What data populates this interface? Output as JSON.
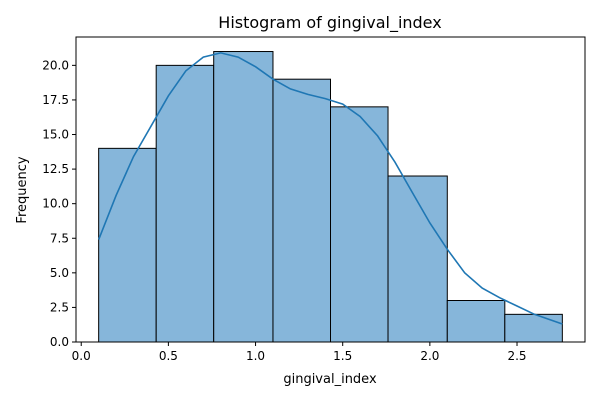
{
  "chart_data": {
    "type": "bar",
    "title": "Histogram of gingival_index",
    "xlabel": "gingival_index",
    "ylabel": "Frequency",
    "xlim": [
      -0.03,
      2.89
    ],
    "ylim": [
      0,
      22.05
    ],
    "x_ticks": [
      "0.0",
      "0.5",
      "1.0",
      "1.5",
      "2.0",
      "2.5"
    ],
    "x_tick_values": [
      0.0,
      0.5,
      1.0,
      1.5,
      2.0,
      2.5
    ],
    "y_ticks": [
      "0.0",
      "2.5",
      "5.0",
      "7.5",
      "10.0",
      "12.5",
      "15.0",
      "17.5",
      "20.0"
    ],
    "y_tick_values": [
      0.0,
      2.5,
      5.0,
      7.5,
      10.0,
      12.5,
      15.0,
      17.5,
      20.0
    ],
    "bins": [
      {
        "x0": 0.1,
        "x1": 0.43,
        "count": 14
      },
      {
        "x0": 0.43,
        "x1": 0.76,
        "count": 20
      },
      {
        "x0": 0.76,
        "x1": 1.1,
        "count": 21
      },
      {
        "x0": 1.1,
        "x1": 1.43,
        "count": 19
      },
      {
        "x0": 1.43,
        "x1": 1.76,
        "count": 17
      },
      {
        "x0": 1.76,
        "x1": 2.1,
        "count": 12
      },
      {
        "x0": 2.1,
        "x1": 2.43,
        "count": 3
      },
      {
        "x0": 2.43,
        "x1": 2.76,
        "count": 2
      }
    ],
    "kde": {
      "x": [
        0.1,
        0.2,
        0.3,
        0.4,
        0.5,
        0.6,
        0.7,
        0.8,
        0.9,
        1.0,
        1.1,
        1.2,
        1.3,
        1.4,
        1.5,
        1.6,
        1.7,
        1.8,
        1.9,
        2.0,
        2.1,
        2.2,
        2.3,
        2.4,
        2.5,
        2.6,
        2.76
      ],
      "y": [
        7.4,
        10.6,
        13.4,
        15.6,
        17.8,
        19.6,
        20.6,
        20.9,
        20.6,
        19.9,
        19.0,
        18.3,
        17.9,
        17.6,
        17.2,
        16.3,
        14.9,
        13.0,
        10.8,
        8.6,
        6.7,
        5.0,
        3.9,
        3.2,
        2.6,
        2.0,
        1.3
      ]
    },
    "grid": false,
    "colors": {
      "bar_fill": "#86b6da",
      "bar_edge": "#000000",
      "kde": "#1f77b4"
    }
  }
}
